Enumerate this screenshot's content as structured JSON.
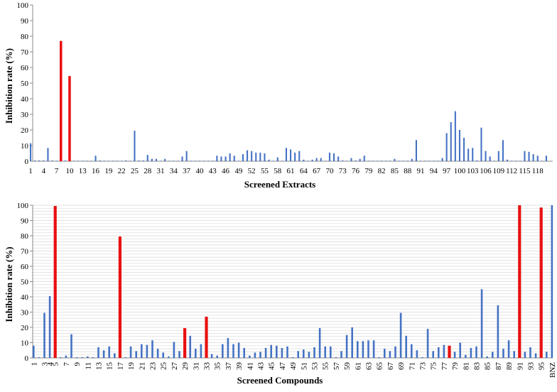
{
  "chart_data": [
    {
      "type": "bar",
      "xlabel": "Screened Extracts",
      "ylabel": "Inhibition rate (%)",
      "ylim": [
        0,
        100
      ],
      "yticks": [
        0,
        10,
        20,
        30,
        40,
        50,
        60,
        70,
        80,
        90,
        100
      ],
      "grid": false,
      "x": [
        1,
        2,
        3,
        4,
        5,
        6,
        7,
        8,
        9,
        10,
        11,
        12,
        13,
        14,
        15,
        16,
        17,
        18,
        19,
        20,
        21,
        22,
        23,
        24,
        25,
        26,
        27,
        28,
        29,
        30,
        31,
        32,
        33,
        34,
        35,
        36,
        37,
        38,
        39,
        40,
        41,
        42,
        43,
        44,
        45,
        46,
        47,
        48,
        49,
        50,
        51,
        52,
        53,
        54,
        55,
        56,
        57,
        58,
        59,
        60,
        61,
        62,
        63,
        64,
        65,
        66,
        67,
        68,
        69,
        70,
        71,
        72,
        73,
        74,
        75,
        76,
        77,
        78,
        79,
        80,
        81,
        82,
        83,
        84,
        85,
        86,
        87,
        88,
        89,
        90,
        91,
        92,
        93,
        94,
        95,
        96,
        97,
        98,
        99,
        100,
        101,
        102,
        103,
        104,
        105,
        106,
        107,
        108,
        109,
        110,
        111,
        112,
        113,
        114,
        115,
        116,
        117,
        118,
        119,
        120
      ],
      "xtick_labels": [
        "1",
        "4",
        "7",
        "10",
        "13",
        "16",
        "19",
        "22",
        "25",
        "28",
        "31",
        "34",
        "37",
        "40",
        "43",
        "46",
        "49",
        "52",
        "55",
        "58",
        "61",
        "64",
        "67",
        "70",
        "73",
        "76",
        "79",
        "82",
        "85",
        "88",
        "91",
        "94",
        "97",
        "100",
        "103",
        "106",
        "109",
        "112",
        "115",
        "118"
      ],
      "values": [
        11.5,
        0.5,
        0.5,
        0.5,
        8.5,
        0.5,
        0.3,
        77,
        0.5,
        54.5,
        0.3,
        0.3,
        0.3,
        0.3,
        0.3,
        3.5,
        0.5,
        0.3,
        0.3,
        0.3,
        0.3,
        0.3,
        0.5,
        0.3,
        19.5,
        0.5,
        0.5,
        4,
        1.5,
        1.5,
        0.3,
        1.5,
        0.3,
        0.3,
        0.3,
        3,
        6.5,
        0.3,
        0.3,
        0.3,
        0.3,
        0.3,
        0.3,
        3.5,
        3,
        3,
        5,
        3.5,
        0.3,
        4.5,
        7,
        6.5,
        5.5,
        5.5,
        5,
        1,
        0.3,
        2.5,
        0.3,
        8.5,
        7.5,
        5.5,
        6.5,
        1,
        0.3,
        1,
        2,
        2,
        0.3,
        5.5,
        5,
        3,
        0.5,
        0.3,
        2,
        0.5,
        1.5,
        3.5,
        0.3,
        0.3,
        0.3,
        0.3,
        0.3,
        0.3,
        1.5,
        0.3,
        0.3,
        0.3,
        1.5,
        13.5,
        0.3,
        0.3,
        0.3,
        0.3,
        0.3,
        2,
        18,
        25,
        32,
        20,
        15,
        8,
        8.5,
        0.5,
        21.5,
        6.5,
        3,
        0.3,
        6.5,
        13.5,
        1,
        0.3,
        0.3,
        0.3,
        6.5,
        6,
        4.5,
        3.5,
        0.3,
        3.5
      ],
      "highlighted": [
        8,
        10
      ],
      "colors": {
        "normal": "#4472C4",
        "highlight": "#E81010"
      }
    },
    {
      "type": "bar",
      "xlabel": "Screened Compounds",
      "ylabel": "Inhibition rate (%)",
      "ylim": [
        0,
        100
      ],
      "yticks": [
        0,
        10,
        20,
        30,
        40,
        50,
        60,
        70,
        80,
        90,
        100
      ],
      "grid": true,
      "x": [
        1,
        2,
        3,
        4,
        5,
        6,
        7,
        8,
        9,
        10,
        11,
        12,
        13,
        14,
        15,
        16,
        17,
        18,
        19,
        20,
        21,
        22,
        23,
        24,
        25,
        26,
        27,
        28,
        29,
        30,
        31,
        32,
        33,
        34,
        35,
        36,
        37,
        38,
        39,
        40,
        41,
        42,
        43,
        44,
        45,
        46,
        47,
        48,
        49,
        50,
        51,
        52,
        53,
        54,
        55,
        56,
        57,
        58,
        59,
        60,
        61,
        62,
        63,
        64,
        65,
        66,
        67,
        68,
        69,
        70,
        71,
        72,
        73,
        74,
        75,
        76,
        77,
        78,
        79,
        80,
        81,
        82,
        83,
        84,
        85,
        86,
        87,
        88,
        89,
        90,
        91,
        92,
        93,
        94,
        95,
        96,
        "BNZ"
      ],
      "xtick_labels": [
        "1",
        "3",
        "4",
        "5",
        "7",
        "9",
        "11",
        "13",
        "15",
        "17",
        "19",
        "21",
        "23",
        "25",
        "27",
        "29",
        "31",
        "33",
        "35",
        "37",
        "39",
        "41",
        "43",
        "45",
        "47",
        "49",
        "51",
        "53",
        "55",
        "57",
        "59",
        "61",
        "63",
        "65",
        "67",
        "69",
        "71",
        "73",
        "75",
        "77",
        "79",
        "81",
        "83",
        "85",
        "87",
        "89",
        "91",
        "93",
        "95",
        "BNZ"
      ],
      "values": [
        8,
        0.5,
        29.5,
        40.5,
        99.5,
        0.5,
        1.5,
        15.5,
        0.5,
        0.5,
        1,
        0.5,
        7,
        5,
        7.5,
        3,
        79.5,
        0.5,
        7.5,
        4.5,
        9,
        8.5,
        11.5,
        6,
        3.5,
        1,
        10.5,
        4.5,
        19.5,
        14.5,
        6,
        9,
        27,
        2.5,
        1.5,
        9,
        13,
        9,
        10,
        6.5,
        1.5,
        3.5,
        4,
        6.5,
        8.5,
        8,
        6.5,
        7.5,
        0.5,
        4.5,
        5.5,
        4,
        7,
        19.5,
        7.5,
        7.5,
        0.5,
        4.5,
        15,
        20,
        11,
        11,
        11.5,
        11.5,
        0.5,
        6,
        4.5,
        7.5,
        29.5,
        14.5,
        9,
        5,
        0.5,
        19,
        4.5,
        7,
        8.5,
        8,
        4,
        10,
        2,
        6.5,
        7.5,
        45,
        1,
        4,
        34.5,
        6,
        11.5,
        4.5,
        100,
        4,
        7,
        3,
        98.5,
        4,
        100
      ],
      "highlighted": [
        5,
        17,
        29,
        33,
        78,
        91,
        95
      ],
      "colors": {
        "normal": "#4472C4",
        "highlight": "#E81010"
      }
    }
  ]
}
